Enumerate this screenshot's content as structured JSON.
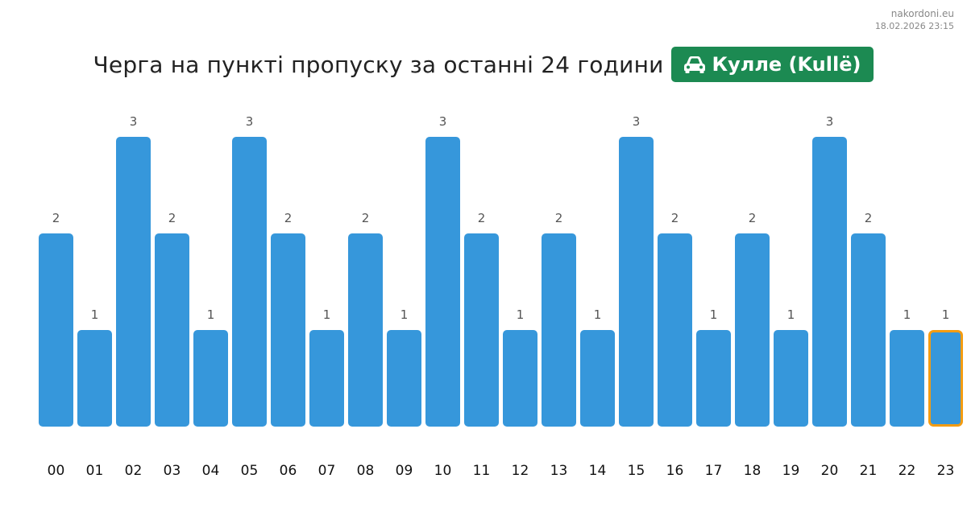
{
  "site": {
    "domain": "nakordoni.eu",
    "timestamp": "18.02.2026 23:15"
  },
  "header": {
    "title": "Черга на пункті пропуску за останні 24 години",
    "badge": {
      "icon": "car-icon",
      "label": "Кулле (Kullë)",
      "color": "#1c8a52"
    }
  },
  "colors": {
    "bar": "#3697db",
    "highlight_border": "#f39c12"
  },
  "chart_data": {
    "type": "bar",
    "categories": [
      "00",
      "01",
      "02",
      "03",
      "04",
      "05",
      "06",
      "07",
      "08",
      "09",
      "10",
      "11",
      "12",
      "13",
      "14",
      "15",
      "16",
      "17",
      "18",
      "19",
      "20",
      "21",
      "22",
      "23"
    ],
    "values": [
      2,
      1,
      3,
      2,
      1,
      3,
      2,
      1,
      2,
      1,
      3,
      2,
      1,
      2,
      1,
      3,
      2,
      1,
      2,
      1,
      3,
      2,
      1,
      1
    ],
    "ylim": [
      0,
      3
    ],
    "grid": false,
    "highlighted_category": "23",
    "data_labels": true
  }
}
